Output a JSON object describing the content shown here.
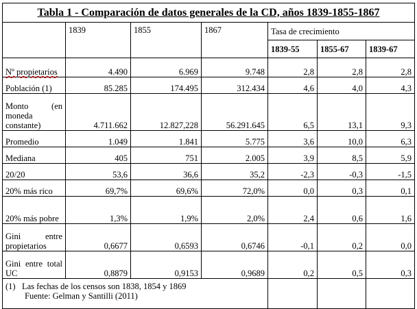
{
  "title": "Tabla 1 - Comparación de datos generales de la CD, años 1839-1855-1867",
  "columns": [
    "1839",
    "1855",
    "1867"
  ],
  "growth_header": "Tasa de crecimiento",
  "growth_columns": [
    "1839-55",
    "1855-67",
    "1839-67"
  ],
  "rows": [
    {
      "label": "Nº propietarios",
      "values": [
        "4.490",
        "6.969",
        "9.748"
      ],
      "growth": [
        "2,8",
        "2,8",
        "2,8"
      ]
    },
    {
      "label": "Población (1)",
      "values": [
        "85.285",
        "174.495",
        "312.434"
      ],
      "growth": [
        "4,6",
        "4,0",
        "4,3"
      ]
    },
    {
      "label": "Monto (en moneda constante)",
      "values": [
        "4.711.662",
        "12.827,228",
        "56.291.645"
      ],
      "growth": [
        "6,5",
        "13,1",
        "9,3"
      ]
    },
    {
      "label": "Promedio",
      "values": [
        "1.049",
        "1.841",
        "5.775"
      ],
      "growth": [
        "3,6",
        "10,0",
        "6,3"
      ]
    },
    {
      "label": "Mediana",
      "values": [
        "405",
        "751",
        "2.005"
      ],
      "growth": [
        "3,9",
        "8,5",
        "5,9"
      ]
    },
    {
      "label": "20/20",
      "values": [
        "53,6",
        "36,6",
        "35,2"
      ],
      "growth": [
        "-2,3",
        "-0,3",
        "-1,5"
      ]
    },
    {
      "label": "20% más rico",
      "values": [
        "69,7%",
        "69,6%",
        "72,0%"
      ],
      "growth": [
        "0,0",
        "0,3",
        "0,1"
      ]
    },
    {
      "label": "20% más pobre",
      "values": [
        "1,3%",
        "1,9%",
        "2,0%"
      ],
      "growth": [
        "2,4",
        "0,6",
        "1,6"
      ]
    },
    {
      "label": "Gini entre propietarios",
      "values": [
        "0,6677",
        "0,6593",
        "0,6746"
      ],
      "growth": [
        "-0,1",
        "0,2",
        "0,0"
      ]
    },
    {
      "label": "Gini entre total UC",
      "values": [
        "0,8879",
        "0,9153",
        "0,9689"
      ],
      "growth": [
        "0,2",
        "0,5",
        "0,3"
      ]
    }
  ],
  "notes": {
    "marker": "(1)",
    "line1": "Las fechas de los censos son 1838, 1854 y 1869",
    "line2": "Fuente: Gelman y Santilli (2011)"
  }
}
